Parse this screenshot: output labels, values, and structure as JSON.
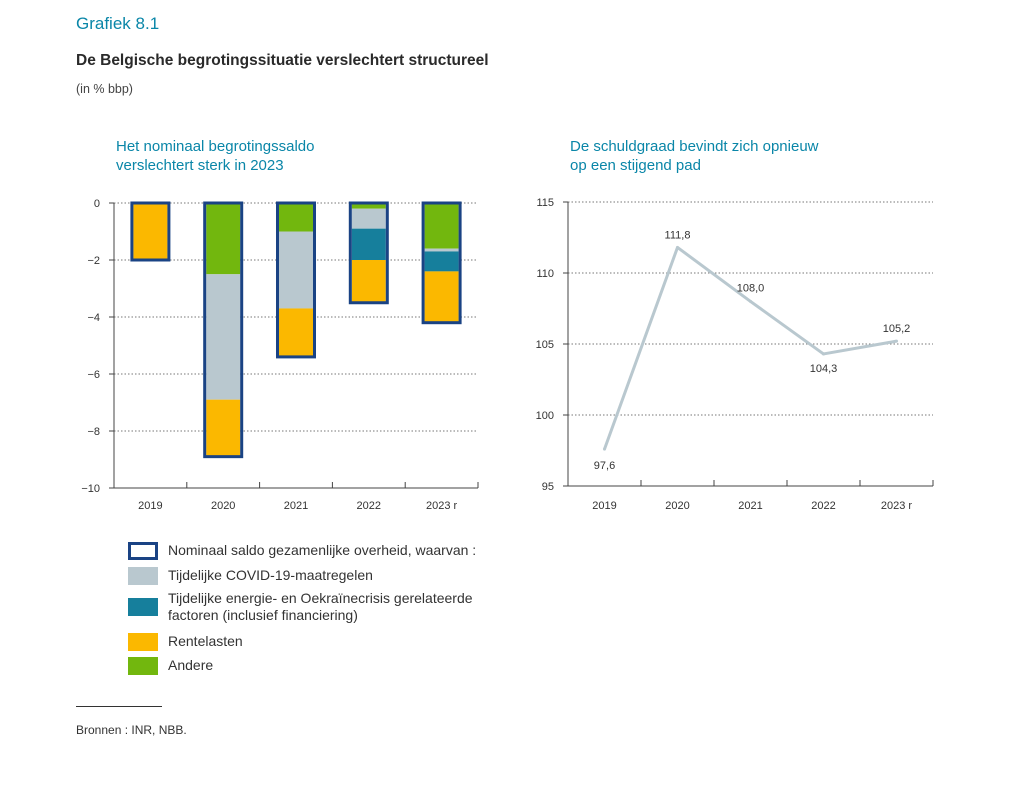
{
  "header": {
    "figure_number": "Grafiek 8.1",
    "title": "De Belgische begrotingssituatie verslechtert structureel",
    "unit": "(in % bbp)"
  },
  "colors": {
    "outline": "#1a4384",
    "covid": "#b9c8cf",
    "energy": "#167f9c",
    "interest": "#fbb800",
    "other": "#72b70e",
    "debt_line": "#b9c8cf",
    "title_accent": "#0a86a8"
  },
  "chart_data": [
    {
      "type": "bar",
      "stacked": true,
      "title": "Het nominaal begrotingssaldo\nverslechtert sterk in 2023",
      "categories": [
        "2019",
        "2020",
        "2021",
        "2022",
        "2023 r"
      ],
      "ylim": [
        -10,
        0
      ],
      "yticks": [
        0,
        -2,
        -4,
        -6,
        -8,
        -10
      ],
      "ytick_labels": [
        "0",
        "−2",
        "−4",
        "−6",
        "−8",
        "−10"
      ],
      "grid": true,
      "totals": {
        "name": "Nominaal saldo gezamenlijke overheid, waarvan :",
        "values": [
          -2.0,
          -8.9,
          -5.4,
          -3.5,
          -4.2
        ]
      },
      "series": [
        {
          "name": "Andere",
          "key": "other",
          "values": [
            0.0,
            -2.5,
            -1.0,
            -0.2,
            -1.6
          ]
        },
        {
          "name": "Tijdelijke COVID-19-maatregelen",
          "key": "covid",
          "values": [
            0.0,
            -4.4,
            -2.7,
            -0.7,
            -0.1
          ]
        },
        {
          "name": "Tijdelijke energie- en Oekraïnecrisis gerelateerde factoren (inclusief financiering)",
          "key": "energy",
          "values": [
            0.0,
            0.0,
            0.0,
            -1.1,
            -0.7
          ]
        },
        {
          "name": "Rentelasten",
          "key": "interest",
          "values": [
            -2.0,
            -2.0,
            -1.7,
            -1.5,
            -1.8
          ]
        }
      ]
    },
    {
      "type": "line",
      "title": "De schuldgraad bevindt zich opnieuw\nop een stijgend pad",
      "x": [
        "2019",
        "2020",
        "2021",
        "2022",
        "2023 r"
      ],
      "series": [
        {
          "values": [
            97.6,
            111.8,
            108.0,
            104.3,
            105.2
          ]
        }
      ],
      "data_labels": [
        "97,6",
        "111,8",
        "108,0",
        "104,3",
        "105,2"
      ],
      "ylim": [
        95,
        115
      ],
      "yticks": [
        95,
        100,
        105,
        110,
        115
      ],
      "grid": true
    }
  ],
  "legend": {
    "items": [
      {
        "key": "outline",
        "label": "Nominaal saldo gezamenlijke overheid, waarvan :"
      },
      {
        "key": "covid",
        "label": "Tijdelijke COVID-19-maatregelen"
      },
      {
        "key": "energy",
        "label": "Tijdelijke energie- en Oekraïnecrisis gerelateerde\nfactoren (inclusief financiering)"
      },
      {
        "key": "interest",
        "label": "Rentelasten"
      },
      {
        "key": "other",
        "label": "Andere"
      }
    ]
  },
  "footer": {
    "source": "Bronnen : INR, NBB."
  }
}
